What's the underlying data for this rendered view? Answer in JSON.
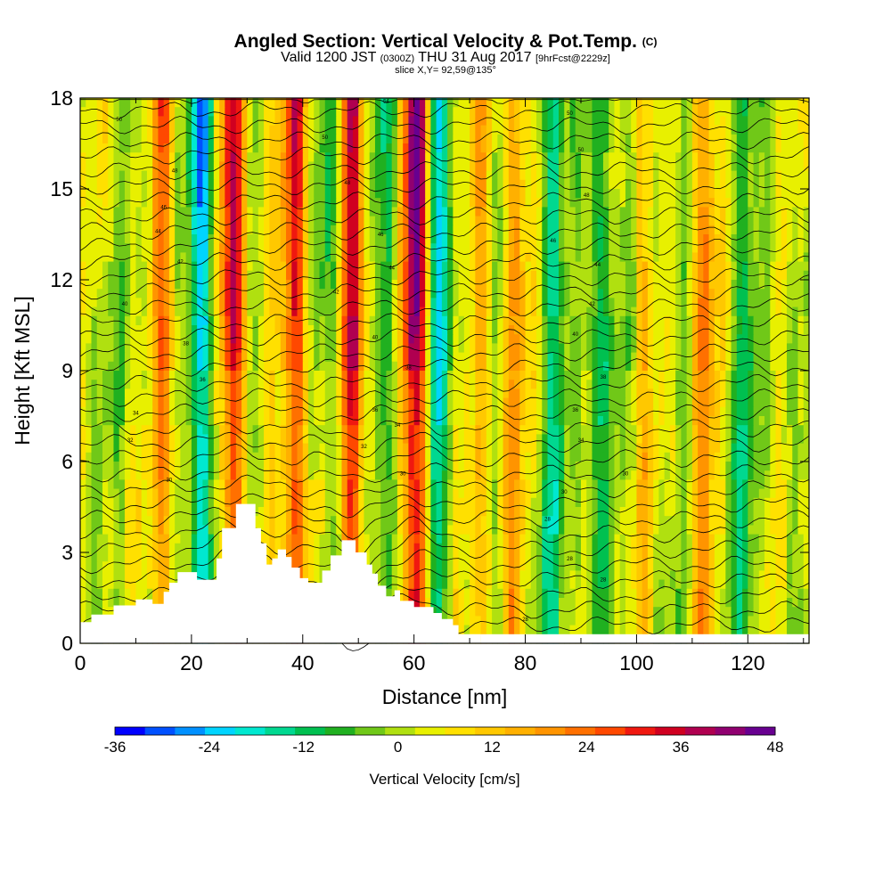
{
  "title": {
    "main": "Angled Section: Vertical Velocity & Pot.Temp.",
    "main_unit": "(C)",
    "valid_prefix": "Valid 1200 JST",
    "valid_z": "(0300Z)",
    "valid_date": "THU 31 Aug 2017",
    "forecast_tag": "[9hrFcst@2229z]",
    "slice": "slice X,Y= 92,59@135°"
  },
  "chart_data": {
    "type": "heatmap",
    "xlabel": "Distance [nm]",
    "ylabel": "Height [Kft MSL]",
    "xlim": [
      0,
      131
    ],
    "ylim": [
      0,
      18
    ],
    "x_ticks": [
      0,
      20,
      40,
      60,
      80,
      100,
      120
    ],
    "y_ticks": [
      0,
      3,
      6,
      9,
      12,
      15,
      18
    ],
    "colorbar": {
      "label": "Vertical Velocity [cm/s]",
      "ticks": [
        -36,
        -24,
        -12,
        0,
        12,
        24,
        36,
        48
      ],
      "range": [
        -36,
        48
      ],
      "step": 4,
      "colors": [
        "#0000ff",
        "#0050ff",
        "#0090ff",
        "#00d4ff",
        "#00e8d0",
        "#00d890",
        "#00c050",
        "#20b020",
        "#70c818",
        "#b0e010",
        "#e8f000",
        "#ffe000",
        "#ffc800",
        "#ffb000",
        "#ff9400",
        "#ff7000",
        "#ff4800",
        "#f01810",
        "#d00020",
        "#b00050",
        "#900070",
        "#680090"
      ]
    },
    "columns": [
      {
        "x": 6,
        "w": 0,
        "note": "near-neutral"
      },
      {
        "x": 15,
        "w": 22
      },
      {
        "x": 22,
        "w": -26
      },
      {
        "x": 27.5,
        "w": 38
      },
      {
        "x": 36,
        "w": 8
      },
      {
        "x": 39,
        "w": 30
      },
      {
        "x": 45,
        "w": -10
      },
      {
        "x": 49,
        "w": 36
      },
      {
        "x": 55,
        "w": -8
      },
      {
        "x": 60.5,
        "w": 48
      },
      {
        "x": 64,
        "w": -22
      },
      {
        "x": 72,
        "w": 14
      },
      {
        "x": 78,
        "w": 18
      },
      {
        "x": 85,
        "w": -14
      },
      {
        "x": 93,
        "w": -14
      },
      {
        "x": 101,
        "w": 10
      },
      {
        "x": 112,
        "w": 22
      },
      {
        "x": 119,
        "w": -10
      }
    ],
    "contour_labels": [
      {
        "x": 7,
        "y": 17.3,
        "text": "50"
      },
      {
        "x": 55,
        "y": 17.9,
        "text": "54"
      },
      {
        "x": 88,
        "y": 17.5,
        "text": "50"
      },
      {
        "x": 44,
        "y": 16.7,
        "text": "50"
      },
      {
        "x": 90,
        "y": 16.3,
        "text": "50"
      },
      {
        "x": 17,
        "y": 15.6,
        "text": "48"
      },
      {
        "x": 48,
        "y": 15.2,
        "text": "48"
      },
      {
        "x": 91,
        "y": 14.8,
        "text": "48"
      },
      {
        "x": 15,
        "y": 14.4,
        "text": "46"
      },
      {
        "x": 54,
        "y": 13.5,
        "text": "46"
      },
      {
        "x": 85,
        "y": 13.3,
        "text": "46"
      },
      {
        "x": 14,
        "y": 13.6,
        "text": "44"
      },
      {
        "x": 56,
        "y": 12.4,
        "text": "44"
      },
      {
        "x": 93,
        "y": 12.5,
        "text": "44"
      },
      {
        "x": 18,
        "y": 12.6,
        "text": "42"
      },
      {
        "x": 46,
        "y": 11.6,
        "text": "42"
      },
      {
        "x": 92,
        "y": 11.2,
        "text": "42"
      },
      {
        "x": 8,
        "y": 11.2,
        "text": "40"
      },
      {
        "x": 53,
        "y": 10.1,
        "text": "40"
      },
      {
        "x": 89,
        "y": 10.2,
        "text": "40"
      },
      {
        "x": 19,
        "y": 9.9,
        "text": "38"
      },
      {
        "x": 59,
        "y": 9.1,
        "text": "38"
      },
      {
        "x": 94,
        "y": 8.8,
        "text": "38"
      },
      {
        "x": 22,
        "y": 8.7,
        "text": "36"
      },
      {
        "x": 53,
        "y": 7.7,
        "text": "36"
      },
      {
        "x": 89,
        "y": 7.7,
        "text": "36"
      },
      {
        "x": 10,
        "y": 7.6,
        "text": "34"
      },
      {
        "x": 57,
        "y": 7.2,
        "text": "34"
      },
      {
        "x": 90,
        "y": 6.7,
        "text": "34"
      },
      {
        "x": 9,
        "y": 6.7,
        "text": "32"
      },
      {
        "x": 51,
        "y": 6.5,
        "text": "32"
      },
      {
        "x": 16,
        "y": 5.4,
        "text": "30"
      },
      {
        "x": 58,
        "y": 5.6,
        "text": "30"
      },
      {
        "x": 98,
        "y": 5.6,
        "text": "30"
      },
      {
        "x": 87,
        "y": 5.0,
        "text": "30"
      },
      {
        "x": 84,
        "y": 4.1,
        "text": "28"
      },
      {
        "x": 88,
        "y": 2.8,
        "text": "28"
      },
      {
        "x": 94,
        "y": 2.1,
        "text": "28"
      },
      {
        "x": 80,
        "y": 0.8,
        "text": "28"
      }
    ]
  }
}
